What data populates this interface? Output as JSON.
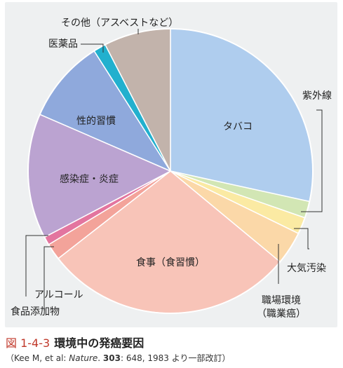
{
  "figure": {
    "number": "図 1-4-3",
    "title": "環境中の発癌要因",
    "source": {
      "prefix": "（Kee M, et al: ",
      "journal": "Nature",
      "sep": ". ",
      "volume": "303",
      "suffix": ": 648, 1983 より一部改訂）"
    }
  },
  "chart_data": {
    "type": "pie",
    "title": "",
    "start": "12 o'clock",
    "direction": "clockwise",
    "slices": [
      {
        "label": "タバコ",
        "value": 30,
        "color": "#afcdee",
        "label_placement": "inside"
      },
      {
        "label": "紫外線",
        "value": 2,
        "color": "#d2e6b4",
        "label_placement": "callout"
      },
      {
        "label": "大気汚染",
        "value": 2,
        "color": "#fbeaa3",
        "label_placement": "callout"
      },
      {
        "label": "職場環境\n（職業癌）",
        "value": 4,
        "color": "#fbd8a8",
        "label_placement": "callout"
      },
      {
        "label": "食事（食習慣）",
        "value": 30,
        "color": "#f8c4b8",
        "label_placement": "inside"
      },
      {
        "label": "食品添加物",
        "value": 2,
        "color": "#f3a39a",
        "label_placement": "callout"
      },
      {
        "label": "アルコール",
        "value": 1,
        "color": "#e3759f",
        "label_placement": "callout"
      },
      {
        "label": "感染症・炎症",
        "value": 15,
        "color": "#bba3d1",
        "label_placement": "inside"
      },
      {
        "label": "性的習慣",
        "value": 10,
        "color": "#8fa9dc",
        "label_placement": "inside"
      },
      {
        "label": "医薬品",
        "value": 1.5,
        "color": "#22b0ce",
        "label_placement": "callout"
      },
      {
        "label": "その他（アスベストなど）",
        "value": 8,
        "color": "#c2b3ab",
        "label_placement": "callout"
      }
    ]
  }
}
